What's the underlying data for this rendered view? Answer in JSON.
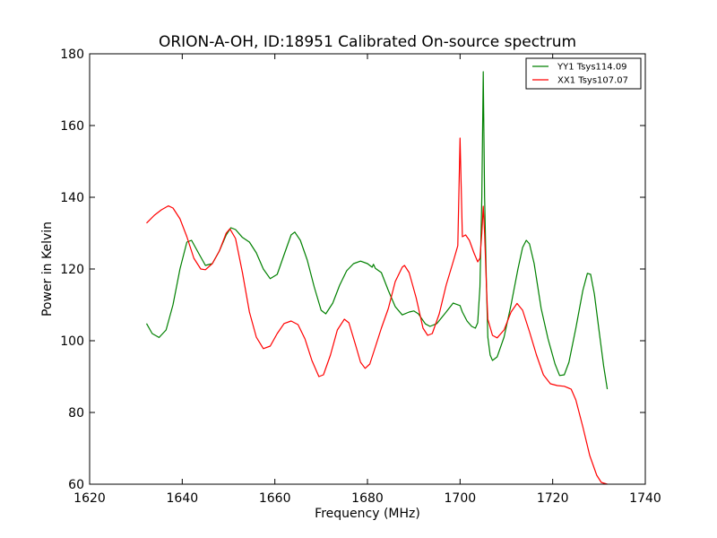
{
  "chart_data": {
    "type": "line",
    "title": "ORION-A-OH, ID:18951 Calibrated On-source spectrum",
    "xlabel": "Frequency (MHz)",
    "ylabel": "Power in Kelvin",
    "xlim": [
      1620,
      1740
    ],
    "ylim": [
      60,
      180
    ],
    "xticks": [
      1620,
      1640,
      1660,
      1680,
      1700,
      1720,
      1740
    ],
    "yticks": [
      60,
      80,
      100,
      120,
      140,
      160,
      180
    ],
    "grid": false,
    "legend_position": "top-right",
    "series": [
      {
        "name": "YY1 Tsys114.09",
        "color": "#008000",
        "points": [
          [
            1632.3,
            104.8
          ],
          [
            1633.5,
            102.0
          ],
          [
            1635,
            100.9
          ],
          [
            1636.5,
            103.0
          ],
          [
            1638,
            110.0
          ],
          [
            1639.5,
            120.0
          ],
          [
            1641,
            127.5
          ],
          [
            1642,
            128.0
          ],
          [
            1643.5,
            124.5
          ],
          [
            1645,
            121.0
          ],
          [
            1646.5,
            121.5
          ],
          [
            1648,
            125.0
          ],
          [
            1649.5,
            129.5
          ],
          [
            1650.5,
            131.5
          ],
          [
            1651.5,
            131.0
          ],
          [
            1653,
            128.8
          ],
          [
            1654.5,
            127.5
          ],
          [
            1656,
            124.5
          ],
          [
            1657.5,
            120.0
          ],
          [
            1659,
            117.3
          ],
          [
            1660.5,
            118.5
          ],
          [
            1662,
            124.0
          ],
          [
            1663.5,
            129.5
          ],
          [
            1664.3,
            130.3
          ],
          [
            1665.5,
            128.0
          ],
          [
            1667,
            122.5
          ],
          [
            1668.5,
            115.0
          ],
          [
            1670,
            108.5
          ],
          [
            1671,
            107.5
          ],
          [
            1672.5,
            110.5
          ],
          [
            1674,
            115.5
          ],
          [
            1675.5,
            119.5
          ],
          [
            1677,
            121.5
          ],
          [
            1678.5,
            122.2
          ],
          [
            1680,
            121.5
          ],
          [
            1681,
            120.5
          ],
          [
            1681.3,
            121.3
          ],
          [
            1681.7,
            120.2
          ],
          [
            1683,
            119.0
          ],
          [
            1684.5,
            114.0
          ],
          [
            1686,
            109.5
          ],
          [
            1687.5,
            107.2
          ],
          [
            1689,
            108.0
          ],
          [
            1690,
            108.3
          ],
          [
            1691,
            107.5
          ],
          [
            1692.5,
            104.7
          ],
          [
            1693.5,
            104.0
          ],
          [
            1695,
            104.8
          ],
          [
            1697,
            108.0
          ],
          [
            1698.5,
            110.5
          ],
          [
            1700,
            109.8
          ],
          [
            1700.5,
            108.0
          ],
          [
            1701.5,
            105.5
          ],
          [
            1702.5,
            104.0
          ],
          [
            1703.3,
            103.5
          ],
          [
            1703.8,
            105.0
          ],
          [
            1704.3,
            115.0
          ],
          [
            1704.7,
            140.0
          ],
          [
            1705.0,
            175.0
          ],
          [
            1705.3,
            140.0
          ],
          [
            1705.7,
            115.0
          ],
          [
            1706.0,
            101.0
          ],
          [
            1706.5,
            96.0
          ],
          [
            1707,
            94.5
          ],
          [
            1708,
            95.5
          ],
          [
            1709.5,
            101.0
          ],
          [
            1711,
            110.0
          ],
          [
            1712.5,
            120.0
          ],
          [
            1713.5,
            126.0
          ],
          [
            1714.3,
            128.0
          ],
          [
            1715,
            127.0
          ],
          [
            1716,
            121.5
          ],
          [
            1717.5,
            109.0
          ],
          [
            1719,
            100.5
          ],
          [
            1720.5,
            93.5
          ],
          [
            1721.5,
            90.3
          ],
          [
            1722.5,
            90.5
          ],
          [
            1723.5,
            94.0
          ],
          [
            1725,
            103.5
          ],
          [
            1726.5,
            114.0
          ],
          [
            1727.5,
            118.8
          ],
          [
            1728.2,
            118.5
          ],
          [
            1729,
            113.0
          ],
          [
            1730,
            103.0
          ],
          [
            1731,
            93.0
          ],
          [
            1731.8,
            86.5
          ]
        ]
      },
      {
        "name": "XX1 Tsys107.07",
        "color": "#ff0000",
        "points": [
          [
            1632.3,
            132.8
          ],
          [
            1634,
            135.0
          ],
          [
            1635.5,
            136.5
          ],
          [
            1637,
            137.6
          ],
          [
            1638,
            137.0
          ],
          [
            1639.5,
            134.0
          ],
          [
            1641,
            129.0
          ],
          [
            1642.5,
            123.0
          ],
          [
            1644,
            120.0
          ],
          [
            1645,
            119.8
          ],
          [
            1646.5,
            121.5
          ],
          [
            1648,
            125.0
          ],
          [
            1649.5,
            130.0
          ],
          [
            1650.3,
            131.2
          ],
          [
            1651.5,
            128.5
          ],
          [
            1653,
            119.0
          ],
          [
            1654.5,
            108.0
          ],
          [
            1656,
            101.0
          ],
          [
            1657.5,
            97.8
          ],
          [
            1659,
            98.5
          ],
          [
            1660.5,
            102.0
          ],
          [
            1662,
            104.8
          ],
          [
            1663.5,
            105.5
          ],
          [
            1665,
            104.5
          ],
          [
            1666.5,
            100.5
          ],
          [
            1668,
            94.5
          ],
          [
            1669.5,
            90.0
          ],
          [
            1670.5,
            90.5
          ],
          [
            1672,
            96.0
          ],
          [
            1673.5,
            103.0
          ],
          [
            1675,
            106.0
          ],
          [
            1676,
            105.0
          ],
          [
            1677.5,
            98.5
          ],
          [
            1678.5,
            94.0
          ],
          [
            1679.5,
            92.3
          ],
          [
            1680.5,
            93.5
          ],
          [
            1681.5,
            97.5
          ],
          [
            1683,
            103.5
          ],
          [
            1684.5,
            109.0
          ],
          [
            1686,
            116.5
          ],
          [
            1687.5,
            120.5
          ],
          [
            1688,
            121.0
          ],
          [
            1689,
            119.0
          ],
          [
            1690.5,
            112.0
          ],
          [
            1692,
            103.5
          ],
          [
            1693,
            101.5
          ],
          [
            1694,
            102.0
          ],
          [
            1695.5,
            107.5
          ],
          [
            1697,
            115.5
          ],
          [
            1698.5,
            122.0
          ],
          [
            1699.5,
            126.5
          ],
          [
            1700.0,
            156.5
          ],
          [
            1700.5,
            129.0
          ],
          [
            1701.2,
            129.5
          ],
          [
            1702,
            128.0
          ],
          [
            1703,
            124.5
          ],
          [
            1703.8,
            122.0
          ],
          [
            1704.3,
            123.0
          ],
          [
            1704.7,
            130.0
          ],
          [
            1705.0,
            137.5
          ],
          [
            1705.3,
            130.0
          ],
          [
            1705.7,
            115.0
          ],
          [
            1706.0,
            106.0
          ],
          [
            1707,
            101.5
          ],
          [
            1708,
            100.8
          ],
          [
            1709.5,
            103.0
          ],
          [
            1711,
            108.0
          ],
          [
            1712.3,
            110.4
          ],
          [
            1713.5,
            108.5
          ],
          [
            1715,
            102.5
          ],
          [
            1716.5,
            96.0
          ],
          [
            1718,
            90.5
          ],
          [
            1719.5,
            88.0
          ],
          [
            1721,
            87.5
          ],
          [
            1722.5,
            87.3
          ],
          [
            1724,
            86.5
          ],
          [
            1725,
            83.5
          ],
          [
            1726.5,
            76.0
          ],
          [
            1728,
            68.0
          ],
          [
            1729.5,
            62.5
          ],
          [
            1730.5,
            60.5
          ],
          [
            1731.8,
            60.0
          ]
        ]
      }
    ]
  }
}
